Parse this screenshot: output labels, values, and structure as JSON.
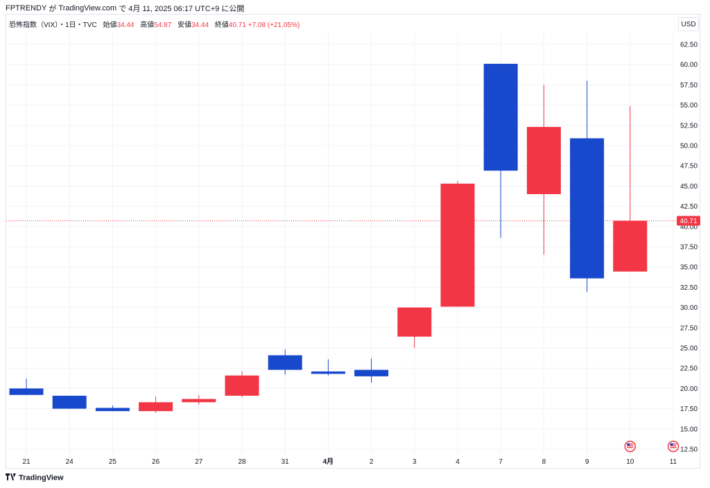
{
  "publish_line": {
    "author": "FPTRENDY",
    "ga": "が",
    "site": "TradingView.com",
    "de": "で",
    "datetime": "4月 11, 2025 06:17 UTC+9",
    "suffix": "に公開"
  },
  "legend": {
    "symbol": "恐怖指数（VIX）",
    "interval": "・1日・TVC",
    "open_label": "始値",
    "open": "34.44",
    "high_label": "高値",
    "high": "54.87",
    "low_label": "安値",
    "low": "34.44",
    "close_label": "終値",
    "close": "40.71",
    "change": "+7.08 (+21.05%)"
  },
  "currency_button": "USD",
  "footer": {
    "brand": "TradingView"
  },
  "colors": {
    "up": "#f23645",
    "down": "#1848cc",
    "grid": "#f0f3fa",
    "text": "#131722"
  },
  "chart_data": {
    "type": "candlestick",
    "ylim": [
      11.5,
      64.5
    ],
    "y_ticks": [
      "62.50",
      "60.00",
      "57.50",
      "55.00",
      "52.50",
      "50.00",
      "47.50",
      "45.00",
      "42.50",
      "40.00",
      "37.50",
      "35.00",
      "32.50",
      "30.00",
      "27.50",
      "25.00",
      "22.50",
      "20.00",
      "17.50",
      "15.00",
      "12.50"
    ],
    "last_price_label": "40.71",
    "last_price": 40.71,
    "x_labels": [
      "21",
      "24",
      "25",
      "26",
      "27",
      "28",
      "31",
      "4月",
      "2",
      "3",
      "4",
      "7",
      "8",
      "9",
      "10",
      "11"
    ],
    "candles": [
      {
        "date": "21",
        "open": 20.0,
        "high": 21.2,
        "low": 19.2,
        "close": 19.2
      },
      {
        "date": "24",
        "open": 19.1,
        "high": 19.1,
        "low": 17.5,
        "close": 17.5
      },
      {
        "date": "25",
        "open": 17.6,
        "high": 17.9,
        "low": 17.2,
        "close": 17.2
      },
      {
        "date": "26",
        "open": 17.2,
        "high": 19.0,
        "low": 17.0,
        "close": 18.3
      },
      {
        "date": "27",
        "open": 18.3,
        "high": 19.2,
        "low": 18.0,
        "close": 18.7
      },
      {
        "date": "28",
        "open": 19.1,
        "high": 22.1,
        "low": 18.9,
        "close": 21.6
      },
      {
        "date": "31",
        "open": 24.1,
        "high": 24.8,
        "low": 21.7,
        "close": 22.3
      },
      {
        "date": "4月",
        "open": 22.1,
        "high": 23.6,
        "low": 21.6,
        "close": 21.8
      },
      {
        "date": "2",
        "open": 22.3,
        "high": 23.7,
        "low": 20.7,
        "close": 21.5
      },
      {
        "date": "3",
        "open": 26.4,
        "high": 30.0,
        "low": 25.0,
        "close": 30.0
      },
      {
        "date": "4",
        "open": 30.1,
        "high": 45.6,
        "low": 30.1,
        "close": 45.3
      },
      {
        "date": "7",
        "open": 60.1,
        "high": 60.1,
        "low": 38.6,
        "close": 46.9
      },
      {
        "date": "8",
        "open": 44.0,
        "high": 57.5,
        "low": 36.5,
        "close": 52.3
      },
      {
        "date": "9",
        "open": 50.9,
        "high": 58.0,
        "low": 31.9,
        "close": 33.6
      },
      {
        "date": "10",
        "open": 34.44,
        "high": 54.87,
        "low": 34.44,
        "close": 40.71
      }
    ]
  }
}
